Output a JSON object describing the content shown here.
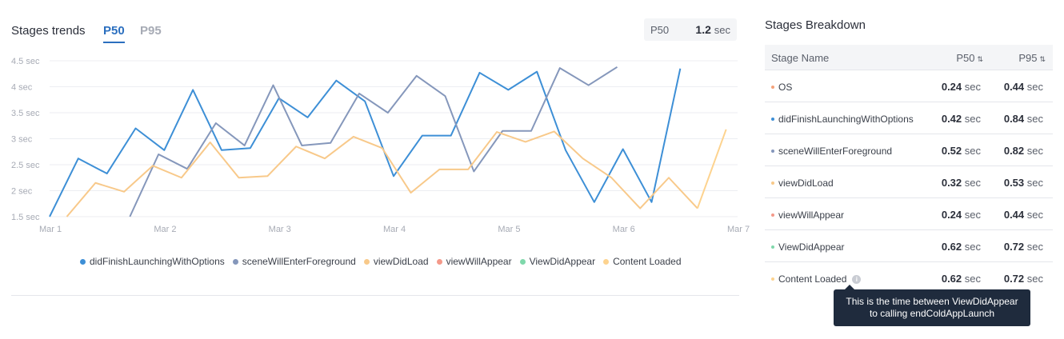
{
  "header": {
    "title": "Stages trends",
    "tabs": [
      "P50",
      "P95"
    ],
    "summary_label": "P50",
    "summary_value": "1.2",
    "summary_unit": "sec"
  },
  "chart_data": {
    "type": "line",
    "y_unit": "sec",
    "ylim": [
      1.5,
      4.5
    ],
    "yticks": [
      "1.5 sec",
      "2 sec",
      "2.5 sec",
      "3 sec",
      "3.5 sec",
      "4 sec",
      "4.5 sec"
    ],
    "ytick_values": [
      1.5,
      2,
      2.5,
      3,
      3.5,
      4,
      4.5
    ],
    "xticks": [
      "Mar 1",
      "Mar 2",
      "Mar 3",
      "Mar 4",
      "Mar 5",
      "Mar 6",
      "Mar 7"
    ],
    "xlim": [
      0.0,
      6.0
    ],
    "grid": true,
    "legend_position": "bottom",
    "series": [
      {
        "name": "didFinishLaunchingWithOptions",
        "color": "#3d8fd6",
        "x": [
          0,
          0.25,
          0.5,
          0.75,
          1,
          1.25,
          1.5,
          1.75,
          2,
          2.25,
          2.5,
          2.75,
          3,
          3.25,
          3.5,
          3.75,
          4,
          4.25,
          4.5,
          4.75,
          5,
          5.25,
          5.5,
          5.75,
          6
        ],
        "values": [
          1.5,
          2.62,
          2.33,
          3.2,
          2.78,
          3.94,
          2.78,
          2.82,
          3.78,
          3.41,
          4.12,
          3.72,
          2.28,
          3.06,
          3.06,
          4.27,
          3.94,
          4.29,
          2.78,
          1.78,
          2.8,
          1.78,
          4.35,
          null,
          null
        ]
      },
      {
        "name": "sceneWillEnterForeground",
        "color": "#8597bb",
        "x": [
          0.7,
          0.95,
          1.2,
          1.45,
          1.7,
          1.95,
          2.2,
          2.45,
          2.7,
          2.95,
          3.2,
          3.45,
          3.7,
          3.95,
          4.2,
          4.45,
          4.7,
          4.95,
          5.2
        ],
        "values": [
          1.5,
          2.7,
          2.42,
          3.3,
          2.87,
          4.03,
          2.87,
          2.92,
          3.87,
          3.5,
          4.21,
          3.82,
          2.37,
          3.15,
          3.15,
          4.36,
          4.03,
          4.38,
          null
        ]
      },
      {
        "name": "viewDidLoad",
        "color": "#f8c98a",
        "x": [
          0.15,
          0.4,
          0.65,
          0.9,
          1.15,
          1.4,
          1.65,
          1.9,
          2.15,
          2.4,
          2.65,
          2.9,
          3.15,
          3.4,
          3.65,
          3.9,
          4.15,
          4.4,
          4.65,
          4.9,
          5.15,
          5.4,
          5.65
        ],
        "values": [
          1.5,
          2.15,
          1.98,
          2.48,
          2.25,
          2.93,
          2.25,
          2.28,
          2.85,
          2.62,
          3.04,
          2.82,
          1.96,
          2.41,
          2.41,
          3.13,
          2.94,
          3.14,
          2.62,
          2.25,
          1.66,
          2.25,
          1.66
        ]
      },
      {
        "name": "viewWillAppear",
        "color": "#f4998a",
        "x": [],
        "values": []
      },
      {
        "name": "ViewDidAppear",
        "color": "#7fd8ab",
        "x": [],
        "values": []
      },
      {
        "name": "Content Loaded",
        "color": "#fdd38f",
        "x": [
          5.65,
          5.9
        ],
        "values": [
          1.66,
          3.18
        ]
      }
    ]
  },
  "breakdown": {
    "title": "Stages Breakdown",
    "columns": {
      "name": "Stage Name",
      "p50": "P50",
      "p95": "P95"
    },
    "sort_icon": "⇅",
    "unit": "sec",
    "rows": [
      {
        "name": "OS",
        "color": "#f4a27a",
        "p50": "0.24",
        "p95": "0.44"
      },
      {
        "name": "didFinishLaunchingWithOptions",
        "color": "#3d8fd6",
        "p50": "0.42",
        "p95": "0.84"
      },
      {
        "name": "sceneWillEnterForeground",
        "color": "#8597bb",
        "p50": "0.52",
        "p95": "0.82"
      },
      {
        "name": "viewDidLoad",
        "color": "#f8c98a",
        "p50": "0.32",
        "p95": "0.53"
      },
      {
        "name": "viewWillAppear",
        "color": "#f4998a",
        "p50": "0.24",
        "p95": "0.44"
      },
      {
        "name": "ViewDidAppear",
        "color": "#7fd8ab",
        "p50": "0.62",
        "p95": "0.72"
      },
      {
        "name": "Content Loaded",
        "color": "#fdd38f",
        "p50": "0.62",
        "p95": "0.72"
      }
    ],
    "tooltip": [
      "This is the time between ViewDidAppear",
      "to calling endColdAppLaunch"
    ]
  }
}
